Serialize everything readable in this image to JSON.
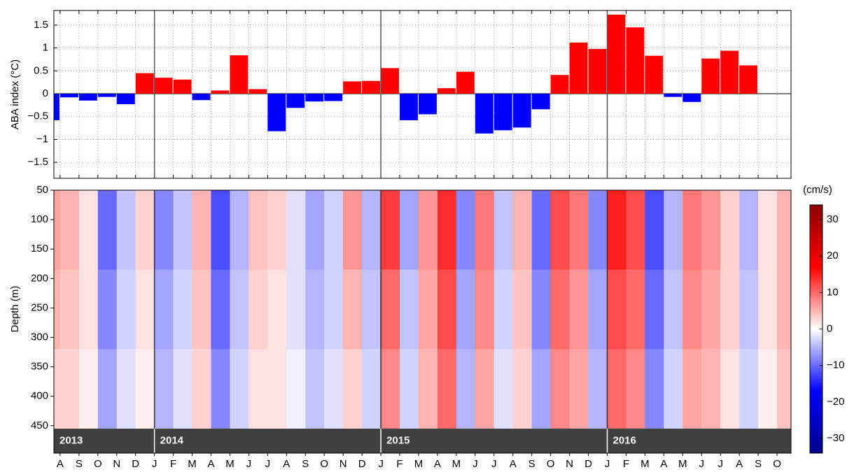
{
  "chart_data": [
    {
      "type": "bar",
      "y_label": "ABA index (°C)",
      "values": [
        -0.58,
        -0.08,
        -0.15,
        -0.07,
        -0.23,
        0.45,
        0.35,
        0.31,
        -0.14,
        0.07,
        0.84,
        0.1,
        -0.82,
        -0.31,
        -0.17,
        -0.16,
        0.27,
        0.28,
        0.56,
        -0.58,
        -0.45,
        0.12,
        0.48,
        -0.87,
        -0.8,
        -0.74,
        -0.34,
        0.41,
        1.12,
        0.98,
        1.73,
        1.45,
        0.83,
        -0.07,
        -0.18,
        0.77,
        0.94,
        0.62,
        null,
        null
      ],
      "positive_color": "#ff0000",
      "negative_color": "#0000ff",
      "ylim": [
        -1.85,
        1.82
      ],
      "yticks": [
        {
          "value": -1.5,
          "label": "−1.5"
        },
        {
          "value": -1,
          "label": "−1"
        },
        {
          "value": -0.5,
          "label": "−0.5"
        },
        0,
        0.5,
        1,
        1.5
      ],
      "grid": true
    },
    {
      "type": "heatmap",
      "y_label": "Depth (m)",
      "colorbar_label": "(cm/s)",
      "years": [
        {
          "label": "2013",
          "months": [
            null,
            "A",
            "S",
            "O",
            "N",
            "D"
          ]
        },
        {
          "label": "2014",
          "months": [
            "J",
            "F",
            "M",
            "A",
            "M",
            "J",
            "J",
            "A",
            "S",
            "O",
            "N",
            "D"
          ]
        },
        {
          "label": "2015",
          "months": [
            "J",
            "F",
            "M",
            "A",
            "M",
            "J",
            "J",
            "A",
            "S",
            "O",
            "N",
            "D"
          ]
        },
        {
          "label": "2016",
          "months": [
            "J",
            "F",
            "M",
            "A",
            "M",
            "J",
            "J",
            "A",
            "S",
            "O"
          ]
        }
      ],
      "depth_bins": [
        50,
        185,
        320,
        455
      ],
      "z": [
        [
          6,
          5,
          2,
          -10,
          -4,
          3,
          -8,
          -4,
          5,
          -12,
          -5,
          4,
          3,
          -2,
          -6,
          -3,
          7,
          -5,
          13,
          -6,
          7,
          14,
          -8,
          9,
          -4,
          5,
          -10,
          12,
          9,
          -8,
          15,
          12,
          -12,
          -5,
          9,
          7,
          3,
          -5,
          2,
          5
        ],
        [
          5,
          4,
          2,
          -8,
          -3,
          2,
          -6,
          -3,
          4,
          -10,
          -4,
          3,
          2,
          -2,
          -5,
          -3,
          5,
          -4,
          10,
          -4,
          6,
          12,
          -6,
          8,
          -3,
          4,
          -8,
          10,
          7,
          -6,
          12,
          10,
          -10,
          -4,
          8,
          6,
          3,
          -4,
          2,
          5
        ],
        [
          3,
          3,
          1,
          -6,
          -2,
          1,
          -5,
          -2,
          3,
          -8,
          -3,
          2,
          2,
          -1,
          -4,
          -2,
          3,
          -3,
          8,
          -3,
          5,
          10,
          -5,
          6,
          -2,
          3,
          -6,
          8,
          6,
          -5,
          10,
          8,
          -8,
          -3,
          6,
          5,
          2,
          -3,
          1,
          4
        ]
      ],
      "ylim": [
        50,
        455
      ],
      "yticks": [
        50,
        100,
        150,
        200,
        250,
        300,
        350,
        400,
        450
      ],
      "colorlim": [
        -34,
        34
      ],
      "colorticks": [
        {
          "value": -30,
          "label": "−30"
        },
        {
          "value": -20,
          "label": "−20"
        },
        {
          "value": -10,
          "label": "−10"
        },
        0,
        10,
        20,
        30
      ],
      "colormap": [
        "#00008b",
        "#0000ff",
        "#ffffff",
        "#ff0000",
        "#8b0000"
      ],
      "year_band_color": "#404040"
    }
  ]
}
